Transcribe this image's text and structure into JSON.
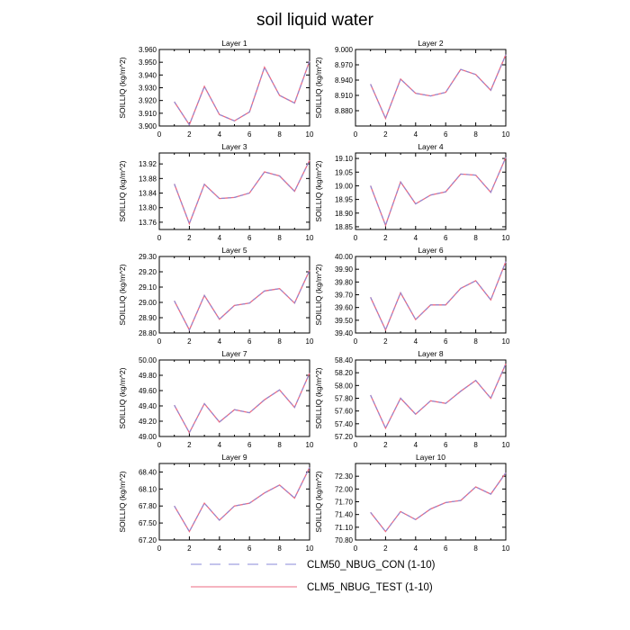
{
  "title": "soil liquid water",
  "colors": {
    "con": "#8a8ad8",
    "test": "#ee6a80",
    "axis": "#000000"
  },
  "legend": {
    "position": "bottom-center",
    "entries": [
      {
        "label": "CLM50_NBUG_CON (1-10)",
        "style": "dashed",
        "color": "#8a8ad8"
      },
      {
        "label": "CLM5_NBUG_TEST (1-10)",
        "style": "solid",
        "color": "#ee6a80"
      }
    ]
  },
  "chart_data": [
    {
      "type": "line",
      "title": "Layer 1",
      "ylabel": "SOILLIQ  (kg/m^2)",
      "x": [
        1,
        2,
        3,
        4,
        5,
        6,
        7,
        8,
        9,
        10
      ],
      "xlim": [
        0,
        10
      ],
      "xticks": [
        0,
        2,
        4,
        6,
        8,
        10
      ],
      "ylim": [
        3.9,
        3.96
      ],
      "yticks": [
        "3.900",
        "3.910",
        "3.920",
        "3.930",
        "3.940",
        "3.950",
        "3.960"
      ],
      "series": [
        {
          "name": "CLM50_NBUG_CON (1-10)",
          "values": [
            3.919,
            3.901,
            3.931,
            3.909,
            3.904,
            3.911,
            3.946,
            3.924,
            3.918,
            3.951
          ]
        },
        {
          "name": "CLM5_NBUG_TEST (1-10)",
          "values": [
            3.919,
            3.901,
            3.931,
            3.909,
            3.904,
            3.911,
            3.946,
            3.924,
            3.918,
            3.951
          ]
        }
      ]
    },
    {
      "type": "line",
      "title": "Layer 2",
      "ylabel": "SOILLIQ  (kg/m^2)",
      "x": [
        1,
        2,
        3,
        4,
        5,
        6,
        7,
        8,
        9,
        10
      ],
      "xlim": [
        0,
        10
      ],
      "xticks": [
        0,
        2,
        4,
        6,
        8,
        10
      ],
      "ylim": [
        8.85,
        9.0
      ],
      "yticks": [
        "8.880",
        "8.910",
        "8.940",
        "8.970",
        "9.000"
      ],
      "series": [
        {
          "name": "CLM50_NBUG_CON (1-10)",
          "values": [
            8.932,
            8.865,
            8.942,
            8.914,
            8.909,
            8.916,
            8.961,
            8.951,
            8.92,
            8.99
          ]
        },
        {
          "name": "CLM5_NBUG_TEST (1-10)",
          "values": [
            8.932,
            8.865,
            8.942,
            8.914,
            8.909,
            8.916,
            8.961,
            8.951,
            8.92,
            8.99
          ]
        }
      ]
    },
    {
      "type": "line",
      "title": "Layer 3",
      "ylabel": "SOILLIQ  (kg/m^2)",
      "x": [
        1,
        2,
        3,
        4,
        5,
        6,
        7,
        8,
        9,
        10
      ],
      "xlim": [
        0,
        10
      ],
      "xticks": [
        0,
        2,
        4,
        6,
        8,
        10
      ],
      "ylim": [
        13.74,
        13.95
      ],
      "yticks": [
        "13.76",
        "13.80",
        "13.84",
        "13.88",
        "13.92"
      ],
      "series": [
        {
          "name": "CLM50_NBUG_CON (1-10)",
          "values": [
            13.865,
            13.756,
            13.864,
            13.825,
            13.828,
            13.84,
            13.898,
            13.887,
            13.845,
            13.93
          ]
        },
        {
          "name": "CLM5_NBUG_TEST (1-10)",
          "values": [
            13.865,
            13.756,
            13.864,
            13.825,
            13.828,
            13.84,
            13.898,
            13.887,
            13.845,
            13.93
          ]
        }
      ]
    },
    {
      "type": "line",
      "title": "Layer 4",
      "ylabel": "SOILLIQ  (kg/m^2)",
      "x": [
        1,
        2,
        3,
        4,
        5,
        6,
        7,
        8,
        9,
        10
      ],
      "xlim": [
        0,
        10
      ],
      "xticks": [
        0,
        2,
        4,
        6,
        8,
        10
      ],
      "ylim": [
        18.84,
        19.12
      ],
      "yticks": [
        "18.85",
        "18.90",
        "18.95",
        "19.00",
        "19.05",
        "19.10"
      ],
      "series": [
        {
          "name": "CLM50_NBUG_CON (1-10)",
          "values": [
            19.0,
            18.855,
            19.014,
            18.934,
            18.966,
            18.978,
            19.043,
            19.039,
            18.976,
            19.104
          ]
        },
        {
          "name": "CLM5_NBUG_TEST (1-10)",
          "values": [
            19.0,
            18.855,
            19.014,
            18.934,
            18.966,
            18.978,
            19.043,
            19.039,
            18.976,
            19.104
          ]
        }
      ]
    },
    {
      "type": "line",
      "title": "Layer 5",
      "ylabel": "SOILLIQ  (kg/m^2)",
      "x": [
        1,
        2,
        3,
        4,
        5,
        6,
        7,
        8,
        9,
        10
      ],
      "xlim": [
        0,
        10
      ],
      "xticks": [
        0,
        2,
        4,
        6,
        8,
        10
      ],
      "ylim": [
        28.8,
        29.3
      ],
      "yticks": [
        "28.80",
        "28.90",
        "29.00",
        "29.10",
        "29.20",
        "29.30"
      ],
      "series": [
        {
          "name": "CLM50_NBUG_CON (1-10)",
          "values": [
            29.01,
            28.82,
            29.045,
            28.89,
            28.98,
            28.995,
            29.075,
            29.09,
            28.995,
            29.21
          ]
        },
        {
          "name": "CLM5_NBUG_TEST (1-10)",
          "values": [
            29.01,
            28.82,
            29.045,
            28.89,
            28.98,
            28.995,
            29.075,
            29.09,
            28.995,
            29.21
          ]
        }
      ]
    },
    {
      "type": "line",
      "title": "Layer 6",
      "ylabel": "SOILLIQ  (kg/m^2)",
      "x": [
        1,
        2,
        3,
        4,
        5,
        6,
        7,
        8,
        9,
        10
      ],
      "xlim": [
        0,
        10
      ],
      "xticks": [
        0,
        2,
        4,
        6,
        8,
        10
      ],
      "ylim": [
        39.4,
        40.0
      ],
      "yticks": [
        "39.40",
        "39.50",
        "39.60",
        "39.70",
        "39.80",
        "39.90",
        "40.00"
      ],
      "series": [
        {
          "name": "CLM50_NBUG_CON (1-10)",
          "values": [
            39.68,
            39.425,
            39.715,
            39.505,
            39.62,
            39.62,
            39.75,
            39.81,
            39.66,
            39.96
          ]
        },
        {
          "name": "CLM5_NBUG_TEST (1-10)",
          "values": [
            39.68,
            39.425,
            39.715,
            39.505,
            39.62,
            39.62,
            39.75,
            39.81,
            39.66,
            39.96
          ]
        }
      ]
    },
    {
      "type": "line",
      "title": "Layer 7",
      "ylabel": "SOILLIQ  (kg/m^2)",
      "x": [
        1,
        2,
        3,
        4,
        5,
        6,
        7,
        8,
        9,
        10
      ],
      "xlim": [
        0,
        10
      ],
      "xticks": [
        0,
        2,
        4,
        6,
        8,
        10
      ],
      "ylim": [
        49.0,
        50.0
      ],
      "yticks": [
        "49.00",
        "49.20",
        "49.40",
        "49.60",
        "49.80",
        "50.00"
      ],
      "series": [
        {
          "name": "CLM50_NBUG_CON (1-10)",
          "values": [
            49.41,
            49.05,
            49.43,
            49.19,
            49.35,
            49.31,
            49.48,
            49.61,
            49.38,
            49.83
          ]
        },
        {
          "name": "CLM5_NBUG_TEST (1-10)",
          "values": [
            49.41,
            49.05,
            49.43,
            49.19,
            49.35,
            49.31,
            49.48,
            49.61,
            49.38,
            49.83
          ]
        }
      ]
    },
    {
      "type": "line",
      "title": "Layer 8",
      "ylabel": "SOILLIQ  (kg/m^2)",
      "x": [
        1,
        2,
        3,
        4,
        5,
        6,
        7,
        8,
        9,
        10
      ],
      "xlim": [
        0,
        10
      ],
      "xticks": [
        0,
        2,
        4,
        6,
        8,
        10
      ],
      "ylim": [
        57.2,
        58.4
      ],
      "yticks": [
        "57.20",
        "57.40",
        "57.60",
        "57.80",
        "58.00",
        "58.20",
        "58.40"
      ],
      "series": [
        {
          "name": "CLM50_NBUG_CON (1-10)",
          "values": [
            57.85,
            57.33,
            57.8,
            57.55,
            57.76,
            57.72,
            57.91,
            58.08,
            57.8,
            58.34
          ]
        },
        {
          "name": "CLM5_NBUG_TEST (1-10)",
          "values": [
            57.85,
            57.33,
            57.8,
            57.55,
            57.76,
            57.72,
            57.91,
            58.08,
            57.8,
            58.34
          ]
        }
      ]
    },
    {
      "type": "line",
      "title": "Layer 9",
      "ylabel": "SOILLIQ  (kg/m^2)",
      "x": [
        1,
        2,
        3,
        4,
        5,
        6,
        7,
        8,
        9,
        10
      ],
      "xlim": [
        0,
        10
      ],
      "xticks": [
        0,
        2,
        4,
        6,
        8,
        10
      ],
      "ylim": [
        67.2,
        68.55
      ],
      "yticks": [
        "67.20",
        "67.50",
        "67.80",
        "68.10",
        "68.40"
      ],
      "series": [
        {
          "name": "CLM50_NBUG_CON (1-10)",
          "values": [
            67.8,
            67.35,
            67.85,
            67.55,
            67.8,
            67.85,
            68.03,
            68.17,
            67.94,
            68.48
          ]
        },
        {
          "name": "CLM5_NBUG_TEST (1-10)",
          "values": [
            67.8,
            67.35,
            67.85,
            67.55,
            67.8,
            67.85,
            68.03,
            68.17,
            67.94,
            68.48
          ]
        }
      ]
    },
    {
      "type": "line",
      "title": "Layer 10",
      "ylabel": "SOILLIQ  (kg/m^2)",
      "x": [
        1,
        2,
        3,
        4,
        5,
        6,
        7,
        8,
        9,
        10
      ],
      "xlim": [
        0,
        10
      ],
      "xticks": [
        0,
        2,
        4,
        6,
        8,
        10
      ],
      "ylim": [
        70.8,
        72.6
      ],
      "yticks": [
        "70.80",
        "71.10",
        "71.40",
        "71.70",
        "72.00",
        "72.30"
      ],
      "series": [
        {
          "name": "CLM50_NBUG_CON (1-10)",
          "values": [
            71.45,
            71.0,
            71.47,
            71.28,
            71.53,
            71.68,
            71.73,
            72.05,
            71.88,
            72.38
          ]
        },
        {
          "name": "CLM5_NBUG_TEST (1-10)",
          "values": [
            71.45,
            71.0,
            71.47,
            71.28,
            71.53,
            71.68,
            71.73,
            72.05,
            71.88,
            72.38
          ]
        }
      ]
    }
  ]
}
